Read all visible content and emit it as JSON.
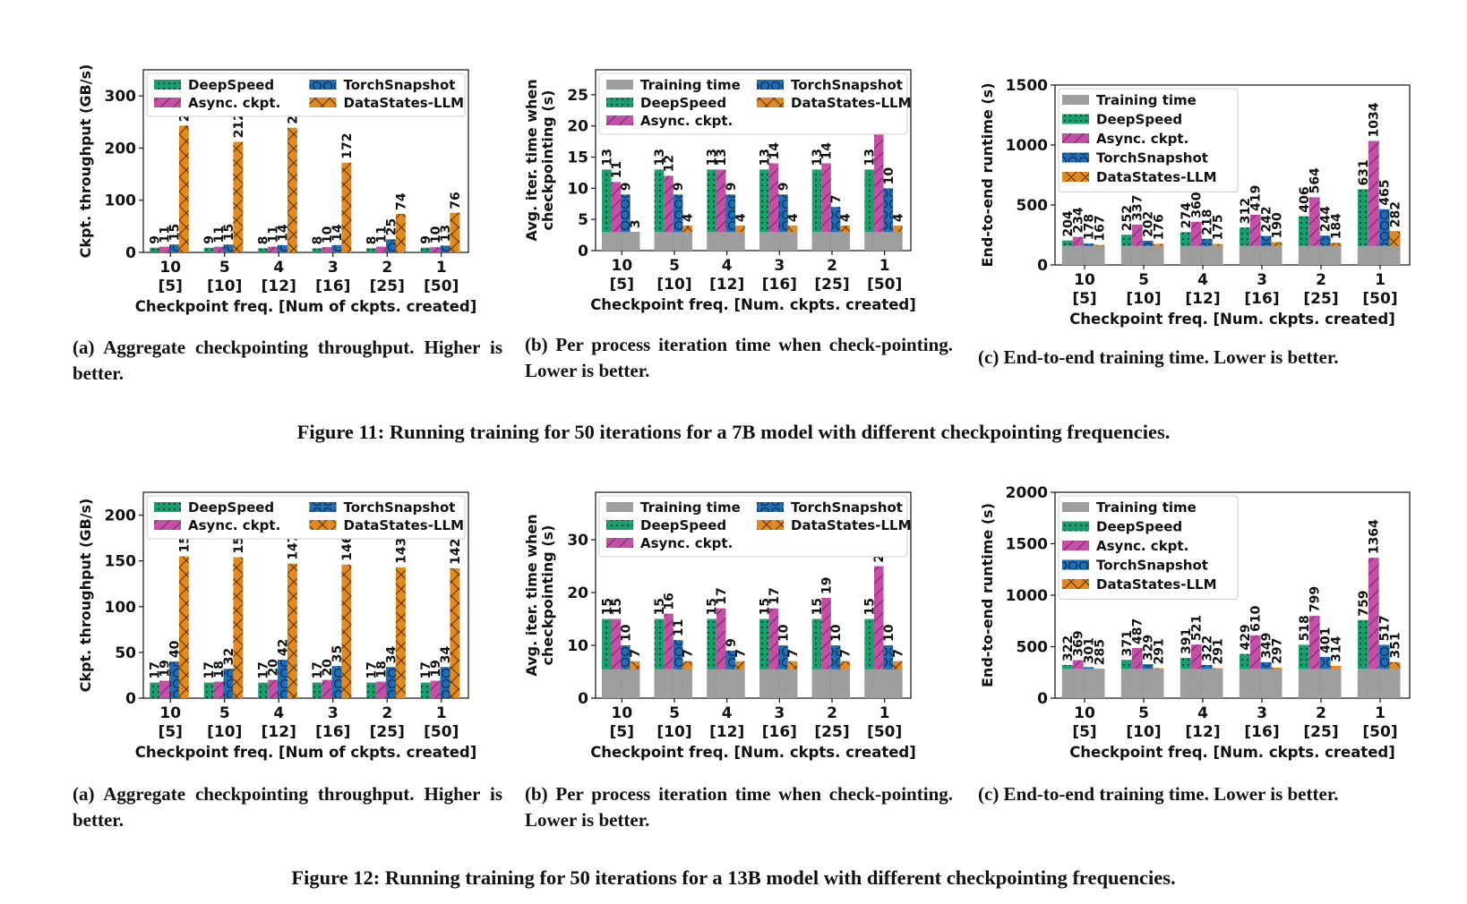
{
  "figures": [
    {
      "caption": "Figure 11: Running training for 50 iterations for a 7B model with different checkpointing frequencies."
    },
    {
      "caption": "Figure 12: Running training for 50 iterations for a 13B model with different checkpointing frequencies."
    }
  ],
  "subcaptions": {
    "a": "(a) Aggregate checkpointing throughput. Higher is better.",
    "b": "(b) Per process iteration time when check-pointing. Lower is better.",
    "c": "(c) End-to-end training time. Lower is better."
  },
  "colors": {
    "training": "#9e9e9e",
    "deepspeed": "#1b9e6e",
    "async": "#c44fa7",
    "torchsnapshot": "#1f6db3",
    "datastates": "#e08b22"
  },
  "chart_data": [
    {
      "type": "bar",
      "xlabel": "Checkpoint freq. [Num of ckpts. created]",
      "ylabel": "Ckpt. throughput (GB/s)",
      "categories": [
        "10\n[5]",
        "5\n[10]",
        "4\n[12]",
        "3\n[16]",
        "2\n[25]",
        "1\n[50]"
      ],
      "ylim": [
        0,
        350
      ],
      "yticks": [
        0,
        100,
        200,
        300
      ],
      "legend_position": "top",
      "series": [
        {
          "name": "DeepSpeed",
          "values": [
            9,
            9,
            8,
            8,
            8,
            9
          ]
        },
        {
          "name": "Async. ckpt.",
          "values": [
            11,
            11,
            11,
            10,
            11,
            10
          ]
        },
        {
          "name": "TorchSnapshot",
          "values": [
            15,
            15,
            14,
            14,
            25,
            13
          ]
        },
        {
          "name": "DataStates-LLM",
          "values": [
            243,
            212,
            239,
            172,
            74,
            76
          ]
        }
      ]
    },
    {
      "type": "bar",
      "xlabel": "Checkpoint freq. [Num. ckpts. created]",
      "ylabel": "Avg. iter. time when checkpointing (s)",
      "categories": [
        "10\n[5]",
        "5\n[10]",
        "4\n[12]",
        "3\n[16]",
        "2\n[25]",
        "1\n[50]"
      ],
      "ylim": [
        0,
        29
      ],
      "yticks": [
        0,
        5,
        10,
        15,
        20,
        25
      ],
      "legend_position": "top",
      "training_time": 3,
      "series": [
        {
          "name": "DeepSpeed",
          "values": [
            13,
            13,
            13,
            13,
            13,
            13
          ]
        },
        {
          "name": "Async. ckpt.",
          "values": [
            11,
            12,
            13,
            14,
            14,
            19
          ]
        },
        {
          "name": "TorchSnapshot",
          "values": [
            9,
            9,
            9,
            9,
            7,
            10
          ]
        },
        {
          "name": "DataStates-LLM",
          "values": [
            3,
            4,
            4,
            4,
            4,
            4
          ]
        }
      ]
    },
    {
      "type": "bar",
      "xlabel": "Checkpoint freq. [Num. ckpts. created]",
      "ylabel": "End-to-end runtime (s)",
      "categories": [
        "10\n[5]",
        "5\n[10]",
        "4\n[12]",
        "3\n[16]",
        "2\n[25]",
        "1\n[50]"
      ],
      "ylim": [
        0,
        1500
      ],
      "yticks": [
        0,
        500,
        1000,
        1500
      ],
      "legend_position": "top-left",
      "training_time": 160,
      "series": [
        {
          "name": "DeepSpeed",
          "values": [
            204,
            252,
            274,
            312,
            406,
            631
          ]
        },
        {
          "name": "Async. ckpt.",
          "values": [
            234,
            337,
            360,
            419,
            564,
            1034
          ]
        },
        {
          "name": "TorchSnapshot",
          "values": [
            178,
            202,
            218,
            242,
            244,
            465
          ]
        },
        {
          "name": "DataStates-LLM",
          "values": [
            167,
            176,
            175,
            190,
            184,
            282
          ]
        }
      ]
    },
    {
      "type": "bar",
      "xlabel": "Checkpoint freq. [Num of ckpts. created]",
      "ylabel": "Ckpt. throughput (GB/s)",
      "categories": [
        "10\n[5]",
        "5\n[10]",
        "4\n[12]",
        "3\n[16]",
        "2\n[25]",
        "1\n[50]"
      ],
      "ylim": [
        0,
        225
      ],
      "yticks": [
        0,
        50,
        100,
        150,
        200
      ],
      "legend_position": "top",
      "series": [
        {
          "name": "DeepSpeed",
          "values": [
            17,
            17,
            17,
            17,
            17,
            17
          ]
        },
        {
          "name": "Async. ckpt.",
          "values": [
            19,
            18,
            20,
            20,
            18,
            19
          ]
        },
        {
          "name": "TorchSnapshot",
          "values": [
            40,
            32,
            42,
            35,
            34,
            34
          ]
        },
        {
          "name": "DataStates-LLM",
          "values": [
            155,
            154,
            147,
            146,
            143,
            142
          ]
        }
      ]
    },
    {
      "type": "bar",
      "xlabel": "Checkpoint freq. [Num. ckpts. created]",
      "ylabel": "Avg. iter. time when checkpointing (s)",
      "categories": [
        "10\n[5]",
        "5\n[10]",
        "4\n[12]",
        "3\n[16]",
        "2\n[25]",
        "1\n[50]"
      ],
      "ylim": [
        0,
        39
      ],
      "yticks": [
        0,
        10,
        20,
        30
      ],
      "legend_position": "top",
      "training_time": 5.5,
      "series": [
        {
          "name": "DeepSpeed",
          "values": [
            15,
            15,
            15,
            15,
            15,
            15
          ]
        },
        {
          "name": "Async. ckpt.",
          "values": [
            15,
            16,
            17,
            17,
            19,
            25
          ]
        },
        {
          "name": "TorchSnapshot",
          "values": [
            10,
            11,
            9,
            10,
            10,
            10
          ]
        },
        {
          "name": "DataStates-LLM",
          "values": [
            7,
            7,
            7,
            7,
            7,
            7
          ]
        }
      ]
    },
    {
      "type": "bar",
      "xlabel": "Checkpoint freq. [Num. ckpts. created]",
      "ylabel": "End-to-end runtime (s)",
      "categories": [
        "10\n[5]",
        "5\n[10]",
        "4\n[12]",
        "3\n[16]",
        "2\n[25]",
        "1\n[50]"
      ],
      "ylim": [
        0,
        2000
      ],
      "yticks": [
        0,
        500,
        1000,
        1500,
        2000
      ],
      "legend_position": "top-left",
      "training_time": 285,
      "series": [
        {
          "name": "DeepSpeed",
          "values": [
            322,
            371,
            391,
            429,
            518,
            759
          ]
        },
        {
          "name": "Async. ckpt.",
          "values": [
            369,
            487,
            521,
            610,
            799,
            1364
          ]
        },
        {
          "name": "TorchSnapshot",
          "values": [
            301,
            329,
            322,
            349,
            401,
            517
          ]
        },
        {
          "name": "DataStates-LLM",
          "values": [
            285,
            291,
            291,
            297,
            314,
            351
          ]
        }
      ]
    }
  ]
}
